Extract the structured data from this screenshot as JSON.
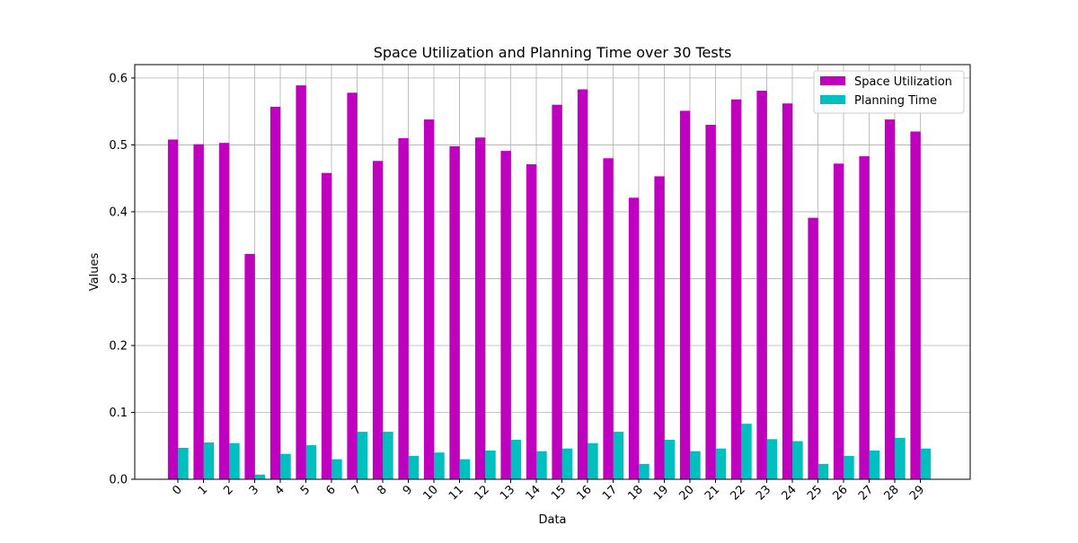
{
  "chart_data": {
    "type": "bar",
    "title": "Space Utilization and Planning Time over 30 Tests",
    "xlabel": "Data",
    "ylabel": "Values",
    "categories": [
      "0",
      "1",
      "2",
      "3",
      "4",
      "5",
      "6",
      "7",
      "8",
      "9",
      "10",
      "11",
      "12",
      "13",
      "14",
      "15",
      "16",
      "17",
      "18",
      "19",
      "20",
      "21",
      "22",
      "23",
      "24",
      "25",
      "26",
      "27",
      "28",
      "29"
    ],
    "ylim": [
      0,
      0.62
    ],
    "yticks": [
      "0.0",
      "0.1",
      "0.2",
      "0.3",
      "0.4",
      "0.5",
      "0.6"
    ],
    "ytick_values": [
      0,
      0.1,
      0.2,
      0.3,
      0.4,
      0.5,
      0.6
    ],
    "grid": true,
    "legend_position": "top-right",
    "series": [
      {
        "name": "Space Utilization",
        "color": "#bf00bf",
        "values": [
          0.508,
          0.501,
          0.503,
          0.337,
          0.557,
          0.589,
          0.458,
          0.578,
          0.476,
          0.51,
          0.538,
          0.498,
          0.511,
          0.491,
          0.471,
          0.56,
          0.583,
          0.48,
          0.421,
          0.453,
          0.551,
          0.53,
          0.568,
          0.581,
          0.562,
          0.391,
          0.472,
          0.483,
          0.538,
          0.52
        ]
      },
      {
        "name": "Planning Time",
        "color": "#00bfbf",
        "values": [
          0.047,
          0.055,
          0.054,
          0.007,
          0.038,
          0.051,
          0.03,
          0.071,
          0.071,
          0.035,
          0.04,
          0.03,
          0.043,
          0.059,
          0.042,
          0.046,
          0.054,
          0.071,
          0.023,
          0.059,
          0.042,
          0.046,
          0.083,
          0.06,
          0.057,
          0.023,
          0.035,
          0.043,
          0.062,
          0.046
        ]
      }
    ]
  }
}
